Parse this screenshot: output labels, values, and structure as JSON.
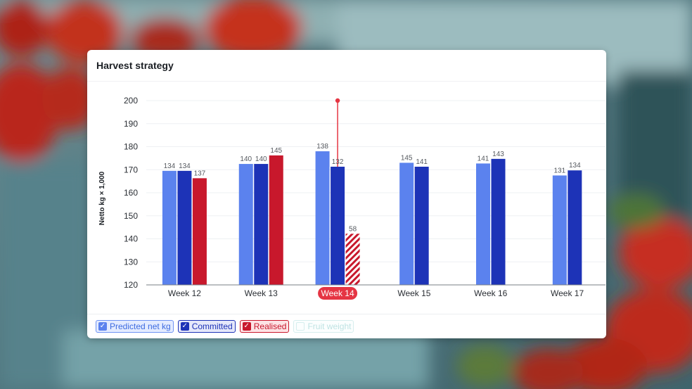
{
  "card": {
    "title": "Harvest strategy"
  },
  "colors": {
    "predicted": "#5b82ee",
    "committed": "#1d33b7",
    "realised": "#c8182c",
    "highlight": "#e53543"
  },
  "legend": [
    {
      "label": "Predicted net kg",
      "checked": true
    },
    {
      "label": "Committed",
      "checked": true
    },
    {
      "label": "Realised",
      "checked": true
    },
    {
      "label": "Fruit weight",
      "checked": false
    }
  ],
  "chart_data": {
    "type": "bar",
    "ylabel": "Netto kg × 1,000",
    "xlabel": "",
    "ylim": [
      120,
      200
    ],
    "yticks": [
      120,
      130,
      140,
      150,
      160,
      170,
      180,
      190,
      200
    ],
    "categories": [
      "Week 12",
      "Week 13",
      "Week 14",
      "Week 15",
      "Week 16",
      "Week 17"
    ],
    "highlighted_category": "Week 14",
    "series": [
      {
        "name": "Predicted net kg",
        "heights": [
          169.5,
          172.5,
          178,
          173,
          172.7,
          167.5
        ],
        "labels": [
          "134",
          "140",
          "138",
          "145",
          "141",
          "131"
        ]
      },
      {
        "name": "Committed",
        "heights": [
          169.5,
          172.5,
          171.3,
          171.3,
          174.7,
          169.7
        ],
        "labels": [
          "134",
          "140",
          "132",
          "141",
          "143",
          "134"
        ]
      },
      {
        "name": "Realised",
        "heights": [
          166.3,
          null,
          null,
          null,
          null,
          null
        ],
        "labels": [
          "137",
          null,
          null,
          null,
          null,
          null
        ]
      }
    ],
    "realised_extra": [
      {
        "category": "Week 13",
        "height": 176.2,
        "label": "145",
        "style": "solid"
      },
      {
        "category": "Week 14",
        "height": 142.2,
        "label": "58",
        "style": "hatched"
      }
    ],
    "marker": {
      "category": "Week 14",
      "value": 200
    },
    "grid": true,
    "legend_position": "bottom-left"
  }
}
